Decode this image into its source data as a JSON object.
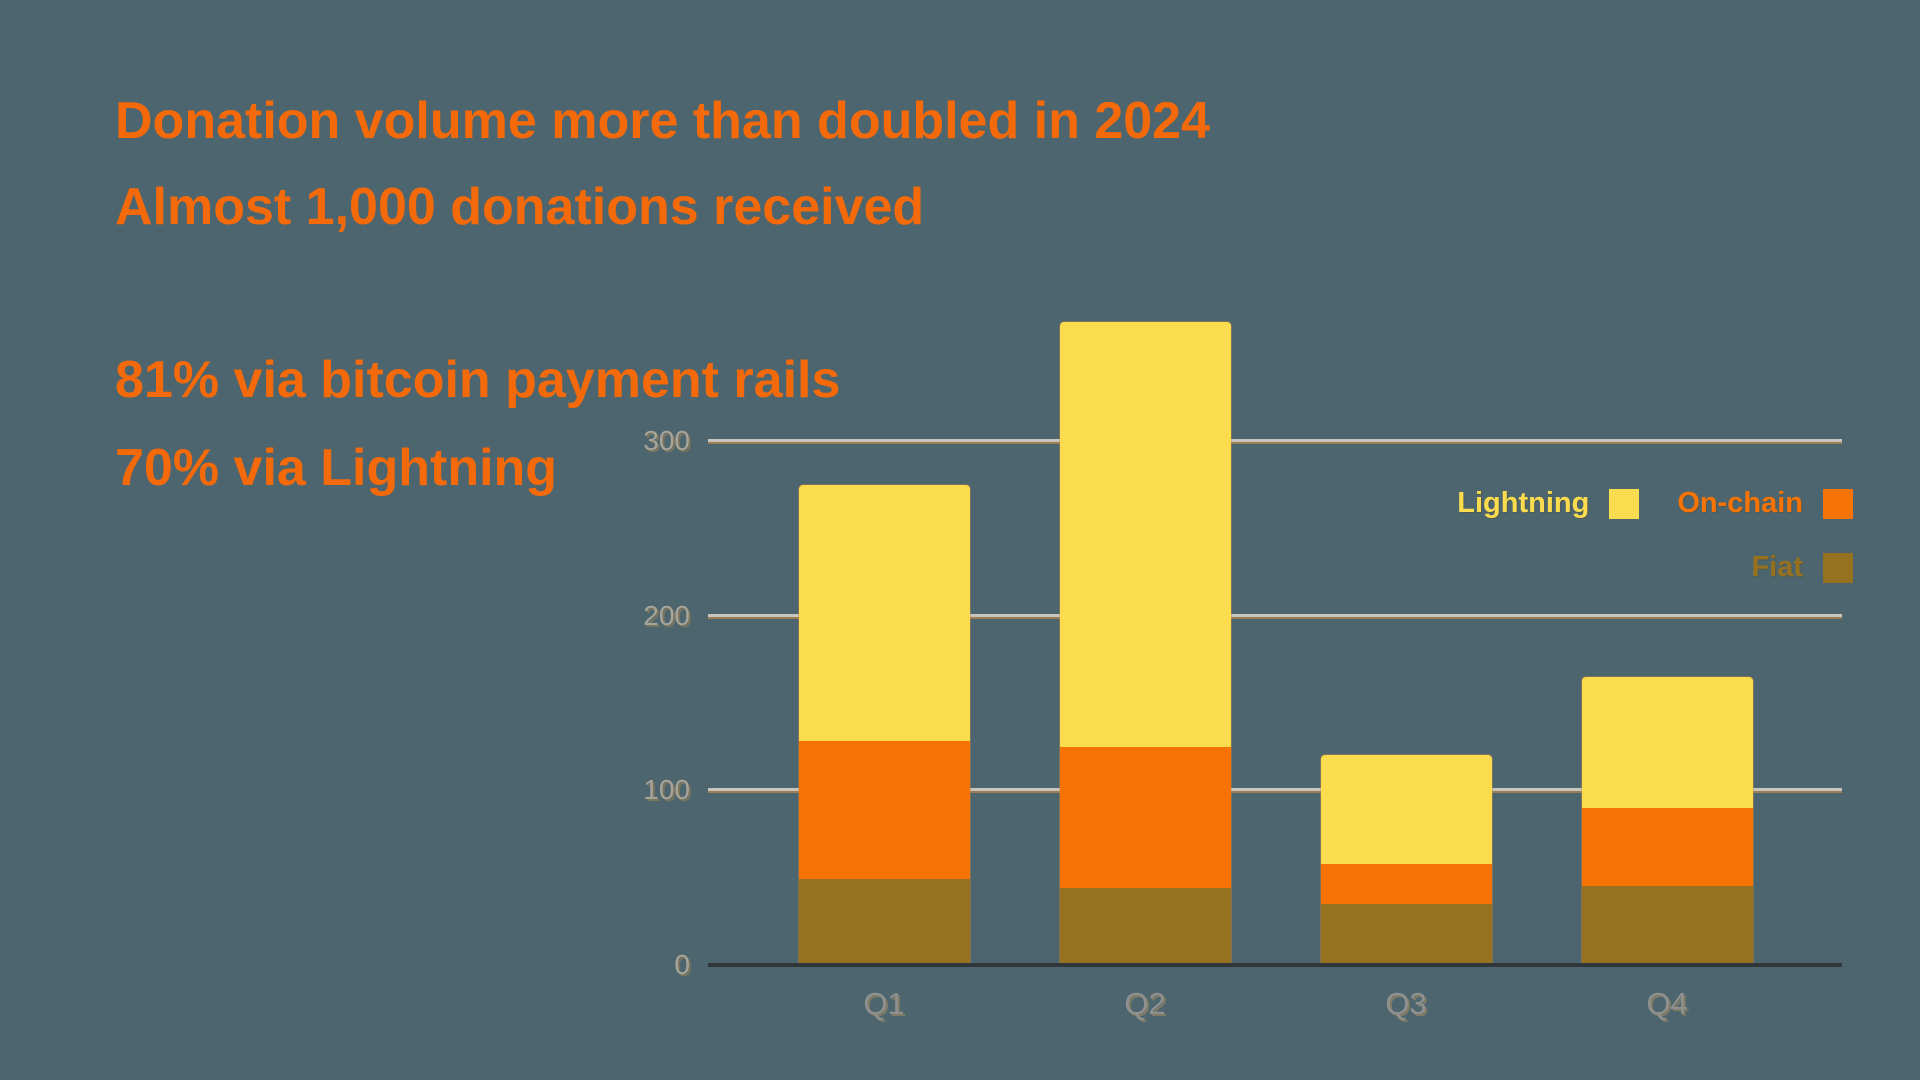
{
  "background_color": "#4C656E",
  "headline": {
    "line1": "Donation volume more than doubled in 2024",
    "line2": "Almost 1,000 donations received",
    "stat1": "81% via bitcoin payment rails",
    "stat2": "70% via Lightning",
    "text_color": "#F4690A"
  },
  "chart_data": {
    "type": "bar",
    "stacked": true,
    "title": "",
    "xlabel": "",
    "ylabel": "",
    "categories": [
      "Q1",
      "Q2",
      "Q3",
      "Q4"
    ],
    "series": [
      {
        "name": "Fiat",
        "color": "#957120",
        "values": [
          49,
          44,
          35,
          45
        ]
      },
      {
        "name": "On-chain",
        "color": "#F87306",
        "values": [
          79,
          81,
          23,
          45
        ]
      },
      {
        "name": "Lightning",
        "color": "#FBDC4E",
        "values": [
          147,
          243,
          62,
          75
        ]
      }
    ],
    "stack_totals": [
      275,
      368,
      120,
      165
    ],
    "yticks": [
      0,
      100,
      200,
      300
    ],
    "ylim": [
      0,
      380
    ],
    "grid": true,
    "gridline_color": "#C7C5BD",
    "axisline_color": "#31363B",
    "tick_label_color": "#A7A49A",
    "category_label_color": "#8F9090",
    "legend_position": "top-right",
    "legend_rows": [
      [
        "Lightning",
        "On-chain"
      ],
      [
        "Fiat"
      ]
    ]
  }
}
